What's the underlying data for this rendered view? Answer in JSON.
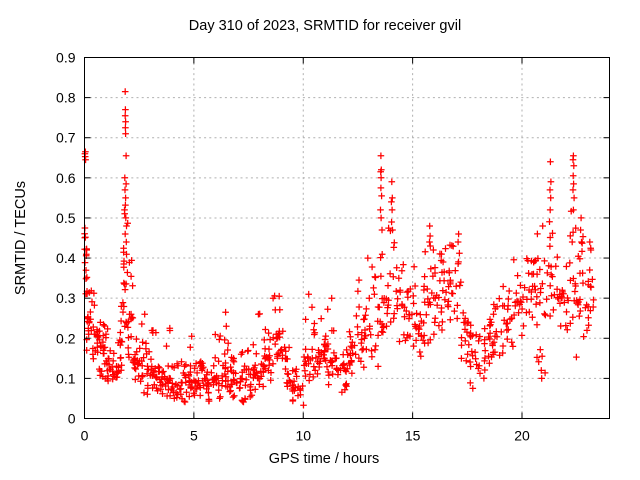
{
  "window": {
    "background": "#ffffff"
  },
  "chart_data": {
    "type": "scatter",
    "title": "Day 310 of 2023, SRMTID for receiver gvil",
    "xlabel": "GPS time / hours",
    "ylabel": "SRMTID / TECUs",
    "xlim": [
      0,
      24
    ],
    "ylim": [
      0,
      0.9
    ],
    "xticks": {
      "values": [
        0,
        5,
        10,
        15,
        20
      ],
      "labels": [
        "0",
        "5",
        "10",
        "15",
        "20"
      ]
    },
    "yticks": {
      "values": [
        0,
        0.1,
        0.2,
        0.3,
        0.4,
        0.5,
        0.6,
        0.7,
        0.8,
        0.9
      ],
      "labels": [
        "0",
        "0.1",
        "0.2",
        "0.3",
        "0.4",
        "0.5",
        "0.6",
        "0.7",
        "0.8",
        "0.9"
      ]
    },
    "grid": {
      "show": true,
      "color": "#b0b0b0",
      "dash": [
        2,
        3.2
      ]
    },
    "frame_color": "#000000",
    "legend": "none",
    "marker": {
      "shape": "plus",
      "color": "#ff0000",
      "size": 7,
      "stroke_width": 1.25
    },
    "seed": 310,
    "series": [
      {
        "name": "SRMTID",
        "color": "#ff0000",
        "density_bins": [
          [
            0.0,
            0.12,
            0.3,
            0.5,
            0.42,
            13
          ],
          [
            0.1,
            0.35,
            0.16,
            0.34,
            0.24,
            18
          ],
          [
            0.35,
            0.62,
            0.13,
            0.34,
            0.21,
            18
          ],
          [
            0.62,
            0.92,
            0.1,
            0.27,
            0.17,
            18
          ],
          [
            0.92,
            1.25,
            0.09,
            0.23,
            0.14,
            18
          ],
          [
            1.25,
            1.55,
            0.09,
            0.2,
            0.13,
            16
          ],
          [
            1.55,
            1.78,
            0.12,
            0.33,
            0.19,
            14
          ],
          [
            1.78,
            1.98,
            0.22,
            0.62,
            0.38,
            18
          ],
          [
            1.98,
            2.22,
            0.14,
            0.4,
            0.26,
            16
          ],
          [
            2.22,
            2.52,
            0.08,
            0.23,
            0.14,
            17
          ],
          [
            2.52,
            2.92,
            0.06,
            0.26,
            0.13,
            20
          ],
          [
            2.92,
            3.32,
            0.07,
            0.22,
            0.12,
            20
          ],
          [
            3.32,
            3.72,
            0.06,
            0.18,
            0.1,
            19
          ],
          [
            3.72,
            4.02,
            0.05,
            0.22,
            0.1,
            17
          ],
          [
            4.02,
            4.42,
            0.03,
            0.14,
            0.08,
            17
          ],
          [
            4.42,
            4.82,
            0.04,
            0.16,
            0.09,
            18
          ],
          [
            4.82,
            5.12,
            0.05,
            0.2,
            0.1,
            17
          ],
          [
            5.12,
            5.52,
            0.05,
            0.18,
            0.1,
            19
          ],
          [
            5.52,
            5.92,
            0.04,
            0.15,
            0.09,
            19
          ],
          [
            5.92,
            6.32,
            0.05,
            0.22,
            0.1,
            19
          ],
          [
            6.32,
            6.62,
            0.06,
            0.26,
            0.12,
            16
          ],
          [
            6.62,
            7.02,
            0.04,
            0.16,
            0.09,
            19
          ],
          [
            7.02,
            7.42,
            0.04,
            0.18,
            0.1,
            19
          ],
          [
            7.42,
            7.82,
            0.05,
            0.2,
            0.11,
            19
          ],
          [
            7.82,
            8.22,
            0.07,
            0.27,
            0.13,
            19
          ],
          [
            8.22,
            8.62,
            0.09,
            0.23,
            0.15,
            19
          ],
          [
            8.62,
            9.12,
            0.13,
            0.31,
            0.21,
            22
          ],
          [
            9.12,
            9.42,
            0.08,
            0.2,
            0.13,
            14
          ],
          [
            9.42,
            10.02,
            0.03,
            0.13,
            0.08,
            22
          ],
          [
            10.02,
            10.42,
            0.08,
            0.31,
            0.15,
            18
          ],
          [
            10.42,
            10.82,
            0.1,
            0.25,
            0.16,
            18
          ],
          [
            10.82,
            11.12,
            0.1,
            0.28,
            0.17,
            15
          ],
          [
            11.12,
            11.52,
            0.08,
            0.22,
            0.14,
            17
          ],
          [
            11.52,
            12.02,
            0.06,
            0.18,
            0.12,
            19
          ],
          [
            12.02,
            12.42,
            0.09,
            0.28,
            0.16,
            17
          ],
          [
            12.42,
            12.82,
            0.12,
            0.34,
            0.2,
            17
          ],
          [
            12.82,
            13.32,
            0.14,
            0.4,
            0.24,
            18
          ],
          [
            13.32,
            13.77,
            0.2,
            0.52,
            0.3,
            16
          ],
          [
            13.77,
            14.22,
            0.22,
            0.48,
            0.32,
            16
          ],
          [
            14.22,
            14.72,
            0.18,
            0.42,
            0.28,
            18
          ],
          [
            14.72,
            15.12,
            0.16,
            0.38,
            0.26,
            17
          ],
          [
            15.12,
            15.52,
            0.15,
            0.35,
            0.24,
            17
          ],
          [
            15.52,
            15.92,
            0.18,
            0.44,
            0.28,
            16
          ],
          [
            15.92,
            16.32,
            0.2,
            0.42,
            0.3,
            18
          ],
          [
            16.32,
            16.72,
            0.22,
            0.45,
            0.33,
            18
          ],
          [
            16.72,
            17.22,
            0.24,
            0.44,
            0.34,
            18
          ],
          [
            17.22,
            17.62,
            0.14,
            0.34,
            0.24,
            16
          ],
          [
            17.62,
            18.12,
            0.08,
            0.25,
            0.15,
            18
          ],
          [
            18.12,
            18.62,
            0.1,
            0.26,
            0.17,
            18
          ],
          [
            18.62,
            19.12,
            0.14,
            0.3,
            0.2,
            18
          ],
          [
            19.12,
            19.62,
            0.16,
            0.33,
            0.24,
            18
          ],
          [
            19.62,
            20.12,
            0.2,
            0.42,
            0.29,
            18
          ],
          [
            20.12,
            20.62,
            0.24,
            0.48,
            0.33,
            18
          ],
          [
            20.62,
            21.12,
            0.1,
            0.5,
            0.33,
            20
          ],
          [
            21.12,
            21.62,
            0.25,
            0.5,
            0.36,
            18
          ],
          [
            21.62,
            22.12,
            0.2,
            0.4,
            0.3,
            18
          ],
          [
            22.12,
            22.52,
            0.15,
            0.52,
            0.33,
            16
          ],
          [
            22.52,
            22.92,
            0.2,
            0.48,
            0.34,
            16
          ],
          [
            22.92,
            23.35,
            0.2,
            0.45,
            0.33,
            15
          ]
        ],
        "points": [
          [
            0.02,
            0.66
          ],
          [
            0.04,
            0.665
          ],
          [
            0.03,
            0.653
          ],
          [
            0.05,
            0.645
          ],
          [
            0.02,
            0.475
          ],
          [
            0.04,
            0.452
          ],
          [
            1.86,
            0.815
          ],
          [
            1.87,
            0.77
          ],
          [
            1.86,
            0.755
          ],
          [
            1.88,
            0.74
          ],
          [
            1.87,
            0.725
          ],
          [
            1.88,
            0.71
          ],
          [
            1.9,
            0.655
          ],
          [
            1.84,
            0.6
          ],
          [
            1.9,
            0.585
          ],
          [
            1.85,
            0.57
          ],
          [
            1.88,
            0.55
          ],
          [
            1.83,
            0.52
          ],
          [
            1.89,
            0.5
          ],
          [
            1.92,
            0.48
          ],
          [
            1.86,
            0.46
          ],
          [
            1.91,
            0.44
          ],
          [
            2.75,
            0.26
          ],
          [
            3.9,
            0.225
          ],
          [
            4.9,
            0.205
          ],
          [
            6.45,
            0.265
          ],
          [
            7.95,
            0.26
          ],
          [
            8.9,
            0.305
          ],
          [
            10.25,
            0.31
          ],
          [
            11.3,
            0.3
          ],
          [
            12.55,
            0.345
          ],
          [
            12.95,
            0.4
          ],
          [
            13.42,
            0.13
          ],
          [
            13.55,
            0.655
          ],
          [
            13.57,
            0.62
          ],
          [
            13.54,
            0.615
          ],
          [
            13.56,
            0.6
          ],
          [
            13.55,
            0.575
          ],
          [
            13.58,
            0.555
          ],
          [
            13.53,
            0.52
          ],
          [
            13.56,
            0.5
          ],
          [
            13.6,
            0.47
          ],
          [
            14.05,
            0.59
          ],
          [
            14.07,
            0.55
          ],
          [
            14.03,
            0.54
          ],
          [
            14.06,
            0.52
          ],
          [
            14.04,
            0.49
          ],
          [
            14.08,
            0.47
          ],
          [
            15.78,
            0.48
          ],
          [
            15.8,
            0.455
          ],
          [
            15.77,
            0.44
          ],
          [
            15.81,
            0.43
          ],
          [
            17.1,
            0.46
          ],
          [
            17.08,
            0.44
          ],
          [
            17.75,
            0.075
          ],
          [
            20.88,
            0.12
          ],
          [
            20.9,
            0.1
          ],
          [
            20.92,
            0.155
          ],
          [
            21.3,
            0.64
          ],
          [
            21.32,
            0.59
          ],
          [
            21.28,
            0.57
          ],
          [
            21.31,
            0.55
          ],
          [
            21.29,
            0.52
          ],
          [
            22.35,
            0.655
          ],
          [
            22.33,
            0.645
          ],
          [
            22.37,
            0.63
          ],
          [
            22.34,
            0.605
          ],
          [
            22.36,
            0.585
          ],
          [
            22.33,
            0.57
          ],
          [
            22.38,
            0.55
          ],
          [
            22.35,
            0.52
          ],
          [
            22.7,
            0.5
          ],
          [
            22.68,
            0.47
          ],
          [
            22.72,
            0.44
          ],
          [
            23.1,
            0.44
          ],
          [
            23.15,
            0.42
          ]
        ]
      }
    ]
  }
}
